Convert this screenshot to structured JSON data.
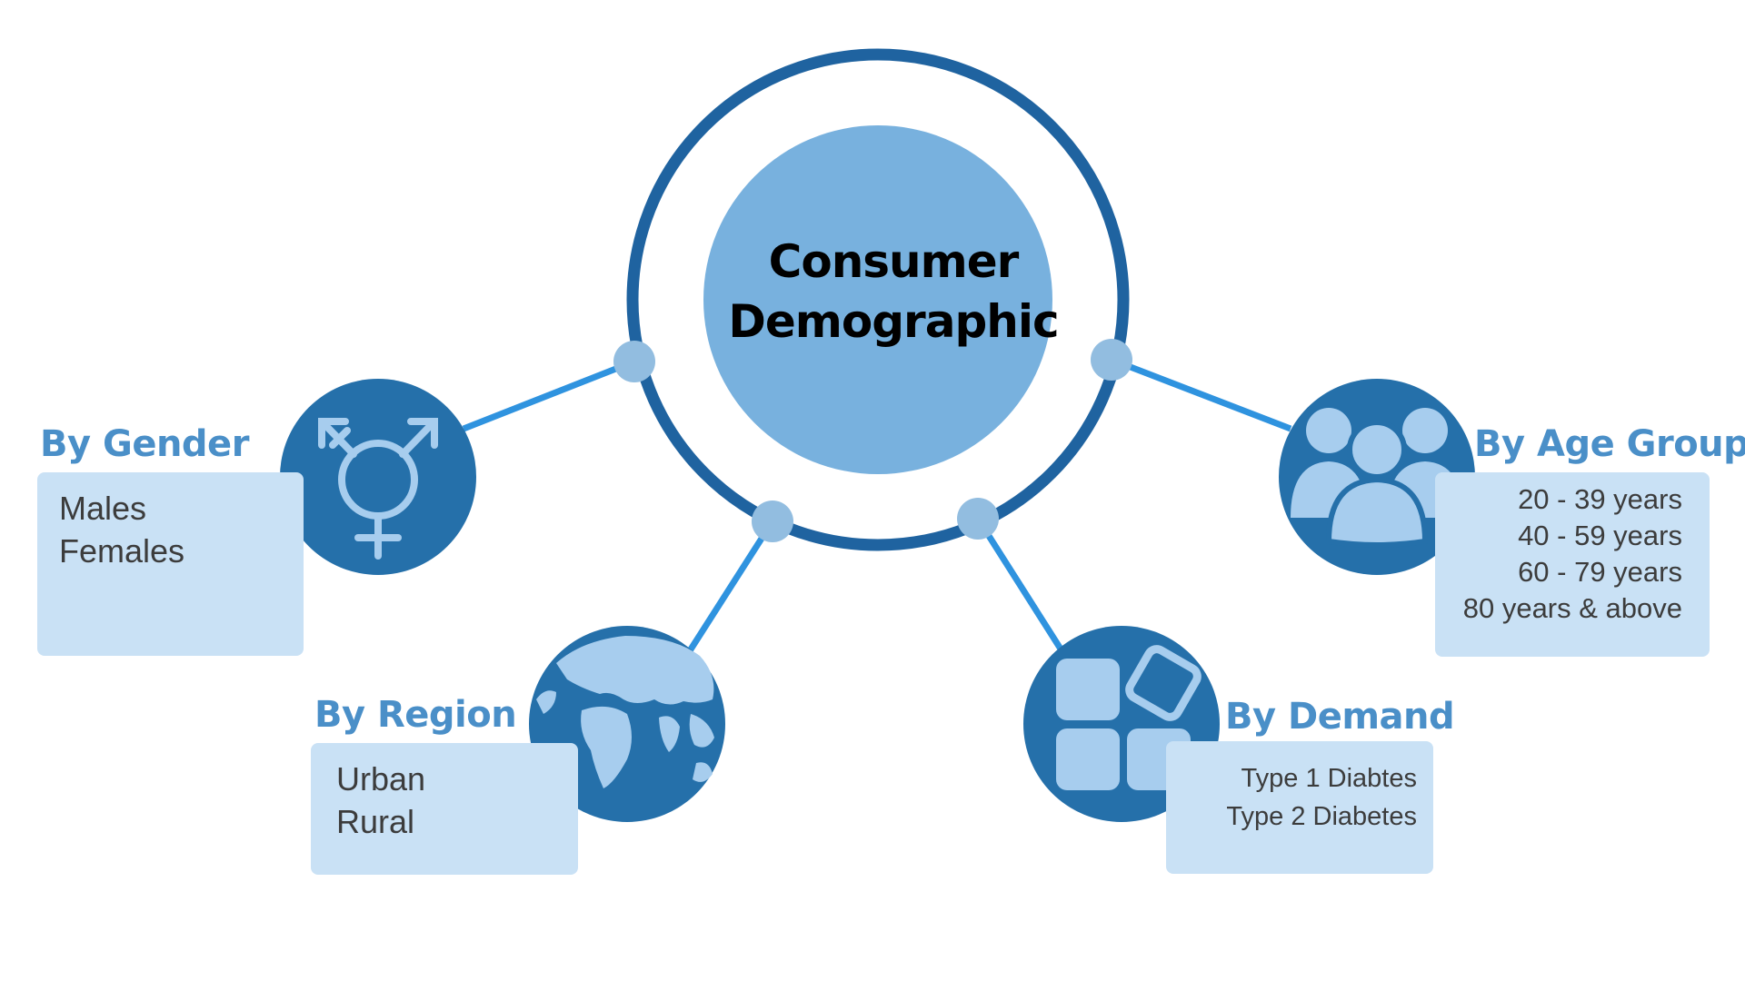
{
  "center": {
    "line1": "Consumer",
    "line2": "Demographic"
  },
  "categories": [
    {
      "title": "By Gender",
      "items": [
        "Males",
        "Females"
      ],
      "icon": "gender-symbol-icon"
    },
    {
      "title": "By Region",
      "items": [
        "Urban",
        "Rural"
      ],
      "icon": "globe-icon"
    },
    {
      "title": "By Demand",
      "items": [
        "Type 1 Diabtes",
        "Type 2 Diabetes"
      ],
      "icon": "app-blocks-icon"
    },
    {
      "title": "By Age Group",
      "items": [
        "20 - 39 years",
        "40 - 59 years",
        "60 - 79 years",
        "80 years & above"
      ],
      "icon": "group-people-icon"
    }
  ],
  "colors": {
    "ring": "#1f63a0",
    "center_fill": "#78b1de",
    "icon_circle": "#2570aa",
    "icon_glyph": "#a7cdee",
    "connector": "#2f93df",
    "node": "#92bde0",
    "box_bg": "#c9e1f5",
    "title": "#4a8fc8"
  }
}
